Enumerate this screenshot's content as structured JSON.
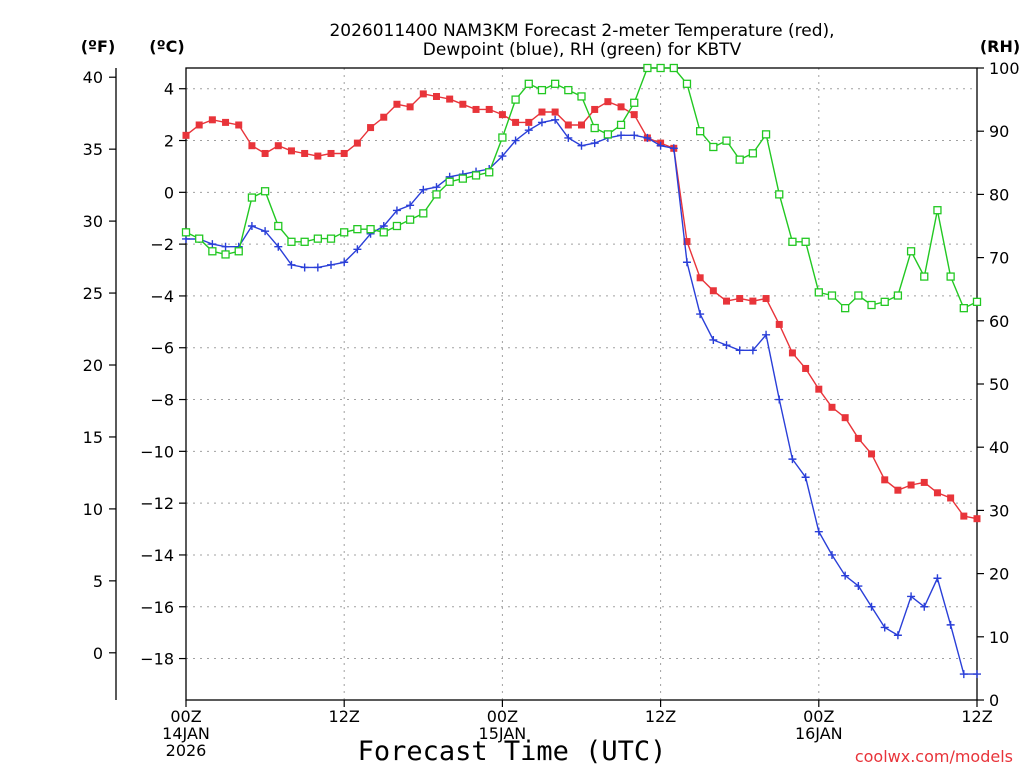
{
  "chart_data": {
    "type": "line",
    "title_lines": [
      "2026011400 NAM3KM Forecast 2-meter Temperature (red),",
      "Dewpoint (blue), RH (green) for KBTV"
    ],
    "xlabel": "Forecast Time (UTC)",
    "credit": "coolwx.com/models",
    "units": {
      "fahrenheit": "(ºF)",
      "celsius": "(ºC)",
      "rh": "(RH)"
    },
    "x_hours_range": [
      0,
      60
    ],
    "celsius_range": [
      -19.6,
      4.8
    ],
    "rh_range": [
      0,
      100
    ],
    "x_ticks": [
      {
        "hour": 0,
        "lines": [
          "00Z",
          "14JAN",
          "2026"
        ]
      },
      {
        "hour": 12,
        "lines": [
          "12Z"
        ]
      },
      {
        "hour": 24,
        "lines": [
          "00Z",
          "15JAN"
        ]
      },
      {
        "hour": 36,
        "lines": [
          "12Z"
        ]
      },
      {
        "hour": 48,
        "lines": [
          "00Z",
          "16JAN"
        ]
      },
      {
        "hour": 60,
        "lines": [
          "12Z"
        ]
      }
    ],
    "celsius_ticks": [
      4,
      2,
      0,
      -2,
      -4,
      -6,
      -8,
      -10,
      -12,
      -14,
      -16,
      -18
    ],
    "celsius_tick_labels": [
      "4",
      "2",
      "0",
      "−2",
      "−4",
      "−6",
      "−8",
      "−10",
      "−12",
      "−14",
      "−16",
      "−18"
    ],
    "fahrenheit_ticks": [
      40,
      35,
      30,
      25,
      20,
      15,
      10,
      5,
      0
    ],
    "rh_ticks": [
      100,
      90,
      80,
      70,
      60,
      50,
      40,
      30,
      20,
      10,
      0
    ],
    "grid": true,
    "series": [
      {
        "name": "2-meter Temperature",
        "color": "#e8343a",
        "marker": "filled-square",
        "axis": "celsius",
        "hours": [
          0,
          1,
          2,
          3,
          4,
          5,
          6,
          7,
          8,
          9,
          10,
          11,
          12,
          13,
          14,
          15,
          16,
          17,
          18,
          19,
          20,
          21,
          22,
          23,
          24,
          25,
          26,
          27,
          28,
          29,
          30,
          31,
          32,
          33,
          34,
          35,
          36,
          37,
          38,
          39,
          40,
          41,
          42,
          43,
          44,
          45,
          46,
          47,
          48,
          49,
          50,
          51,
          52,
          53,
          54,
          55,
          56,
          57,
          58,
          59,
          60
        ],
        "values": [
          2.2,
          2.6,
          2.8,
          2.7,
          2.6,
          1.8,
          1.5,
          1.8,
          1.6,
          1.5,
          1.4,
          1.5,
          1.5,
          1.9,
          2.5,
          2.9,
          3.4,
          3.3,
          3.8,
          3.7,
          3.6,
          3.4,
          3.2,
          3.2,
          3.0,
          2.7,
          2.7,
          3.1,
          3.1,
          2.6,
          2.6,
          3.2,
          3.5,
          3.3,
          3.0,
          2.1,
          1.9,
          1.7,
          -1.9,
          -3.3,
          -3.8,
          -4.2,
          -4.1,
          -4.2,
          -4.1,
          -5.1,
          -6.2,
          -6.8,
          -7.6,
          -8.3,
          -8.7,
          -9.5,
          -10.1,
          -11.1,
          -11.5,
          -11.3,
          -11.2,
          -11.6,
          -11.8,
          -12.5,
          -12.6
        ]
      },
      {
        "name": "Dewpoint",
        "color": "#2a3fd8",
        "marker": "plus",
        "axis": "celsius",
        "hours": [
          0,
          1,
          2,
          3,
          4,
          5,
          6,
          7,
          8,
          9,
          10,
          11,
          12,
          13,
          14,
          15,
          16,
          17,
          18,
          19,
          20,
          21,
          22,
          23,
          24,
          25,
          26,
          27,
          28,
          29,
          30,
          31,
          32,
          33,
          34,
          35,
          36,
          37,
          38,
          39,
          40,
          41,
          42,
          43,
          44,
          45,
          46,
          47,
          48,
          49,
          50,
          51,
          52,
          53,
          54,
          55,
          56,
          57,
          58,
          59,
          60
        ],
        "values": [
          -1.8,
          -1.8,
          -2.0,
          -2.1,
          -2.1,
          -1.3,
          -1.5,
          -2.1,
          -2.8,
          -2.9,
          -2.9,
          -2.8,
          -2.7,
          -2.2,
          -1.6,
          -1.3,
          -0.7,
          -0.5,
          0.1,
          0.2,
          0.6,
          0.7,
          0.8,
          0.9,
          1.4,
          2.0,
          2.4,
          2.7,
          2.8,
          2.1,
          1.8,
          1.9,
          2.1,
          2.2,
          2.2,
          2.1,
          1.8,
          1.7,
          -2.7,
          -4.7,
          -5.7,
          -5.9,
          -6.1,
          -6.1,
          -5.5,
          -8.0,
          -10.3,
          -11.0,
          -13.1,
          -14.0,
          -14.8,
          -15.2,
          -16.0,
          -16.8,
          -17.1,
          -15.6,
          -16.0,
          -14.9,
          -16.7,
          -18.6,
          -18.6
        ]
      },
      {
        "name": "Relative Humidity",
        "color": "#22c822",
        "marker": "open-square",
        "axis": "rh",
        "hours": [
          0,
          1,
          2,
          3,
          4,
          5,
          6,
          7,
          8,
          9,
          10,
          11,
          12,
          13,
          14,
          15,
          16,
          17,
          18,
          19,
          20,
          21,
          22,
          23,
          24,
          25,
          26,
          27,
          28,
          29,
          30,
          31,
          32,
          33,
          34,
          35,
          36,
          37,
          38,
          39,
          40,
          41,
          42,
          43,
          44,
          45,
          46,
          47,
          48,
          49,
          50,
          51,
          52,
          53,
          54,
          55,
          56,
          57,
          58,
          59,
          60
        ],
        "values": [
          74,
          73,
          71,
          70.5,
          71,
          79.5,
          80.5,
          75,
          72.5,
          72.5,
          73,
          73,
          74,
          74.5,
          74.5,
          74,
          75,
          76,
          77,
          80,
          82,
          82.5,
          83,
          83.5,
          89,
          95,
          97.5,
          96.5,
          97.5,
          96.5,
          95.5,
          90.5,
          89.5,
          91,
          94.5,
          100,
          100,
          100,
          97.5,
          90,
          87.5,
          88.5,
          85.5,
          86.5,
          89.5,
          80,
          72.5,
          72.5,
          64.5,
          64,
          62,
          64,
          62.5,
          63,
          64,
          71,
          67,
          77.5,
          67,
          62,
          63
        ]
      }
    ]
  }
}
